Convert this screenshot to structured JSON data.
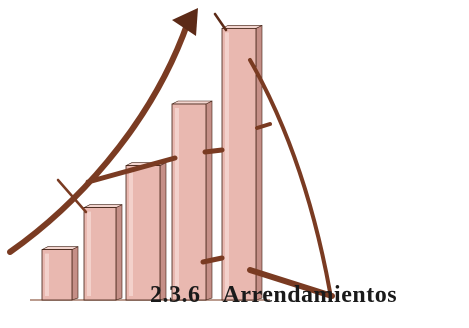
{
  "illustration": {
    "name": "rising-bar-chart-clipart",
    "bar_count": 5,
    "bar_levels": [
      0.18,
      0.33,
      0.48,
      0.7,
      0.97
    ],
    "colors": {
      "bar_face": "#e9b8b0",
      "bar_side": "#c58f87",
      "bar_top": "#f3d5cf",
      "accent": "#7a3b22",
      "accent_dark": "#5c2a17",
      "outline": "#3f1f12"
    },
    "icons": [
      "arrow-up-right-icon"
    ]
  },
  "section": {
    "number": "2.3.6",
    "title": "Arrendamientos"
  }
}
